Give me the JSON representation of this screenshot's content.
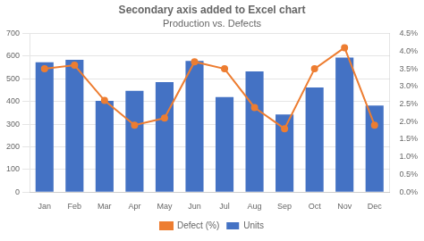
{
  "chart_data": {
    "type": "bar",
    "title": "Secondary axis added to Excel chart",
    "subtitle": "Production vs. Defects",
    "categories": [
      "Jan",
      "Feb",
      "Mar",
      "Apr",
      "May",
      "Jun",
      "Jul",
      "Aug",
      "Sep",
      "Oct",
      "Nov",
      "Dec"
    ],
    "series": [
      {
        "name": "Units",
        "type": "bar",
        "color": "#4472C4",
        "values": [
          573,
          584,
          403,
          447,
          486,
          579,
          420,
          533,
          343,
          462,
          594,
          382
        ]
      },
      {
        "name": "Defect (%)",
        "type": "line",
        "axis": "y2",
        "color": "#ED7D31",
        "marker": "circle",
        "line_style": "solid",
        "values": [
          3.5,
          3.6,
          2.6,
          1.9,
          2.1,
          3.7,
          3.5,
          2.4,
          1.8,
          3.5,
          4.1,
          1.9
        ]
      }
    ],
    "ylim": [
      0,
      700
    ],
    "yticks": [
      0,
      100,
      200,
      300,
      400,
      500,
      600,
      700
    ],
    "y2lim": [
      0.0,
      4.5
    ],
    "y2ticks": [
      {
        "value": 0.0,
        "label": "0.0%"
      },
      {
        "value": 0.5,
        "label": "0.5%"
      },
      {
        "value": 1.0,
        "label": "1.0%"
      },
      {
        "value": 1.5,
        "label": "1.5%"
      },
      {
        "value": 2.0,
        "label": "2.0%"
      },
      {
        "value": 2.5,
        "label": "2.5%"
      },
      {
        "value": 3.0,
        "label": "3.0%"
      },
      {
        "value": 3.5,
        "label": "3.5%"
      },
      {
        "value": 4.0,
        "label": "4.0%"
      },
      {
        "value": 4.5,
        "label": "4.5%"
      }
    ],
    "grid": true,
    "legend": "bottom"
  }
}
